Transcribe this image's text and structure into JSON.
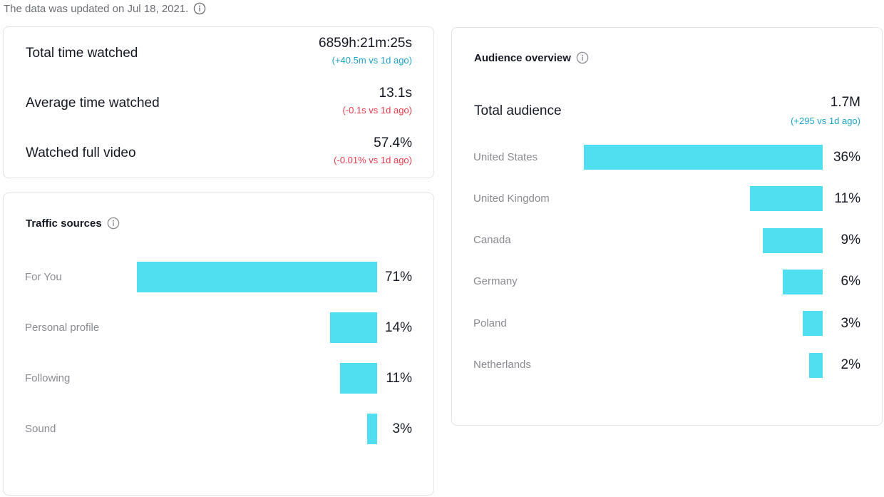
{
  "update_note": {
    "text": "The data was updated on Jul 18, 2021.",
    "icon": "info-icon"
  },
  "stats": [
    {
      "label": "Total time watched",
      "value": "6859h:21m:25s",
      "delta": "(+40.5m vs 1d ago)",
      "trend": "up"
    },
    {
      "label": "Average time watched",
      "value": "13.1s",
      "delta": "(-0.1s vs 1d ago)",
      "trend": "down"
    },
    {
      "label": "Watched full video",
      "value": "57.4%",
      "delta": "(-0.01% vs 1d ago)",
      "trend": "down"
    }
  ],
  "traffic_sources": {
    "title": "Traffic sources",
    "icon": "info-icon",
    "items": [
      {
        "label": "For You",
        "percent": 71,
        "percent_label": "71%"
      },
      {
        "label": "Personal profile",
        "percent": 14,
        "percent_label": "14%"
      },
      {
        "label": "Following",
        "percent": 11,
        "percent_label": "11%"
      },
      {
        "label": "Sound",
        "percent": 3,
        "percent_label": "3%"
      }
    ]
  },
  "audience": {
    "title": "Audience overview",
    "icon": "info-icon",
    "total_label": "Total audience",
    "total_value": "1.7M",
    "total_delta": "(+295 vs 1d ago)",
    "countries": [
      {
        "label": "United States",
        "percent": 36,
        "percent_label": "36%"
      },
      {
        "label": "United Kingdom",
        "percent": 11,
        "percent_label": "11%"
      },
      {
        "label": "Canada",
        "percent": 9,
        "percent_label": "9%"
      },
      {
        "label": "Germany",
        "percent": 6,
        "percent_label": "6%"
      },
      {
        "label": "Poland",
        "percent": 3,
        "percent_label": "3%"
      },
      {
        "label": "Netherlands",
        "percent": 2,
        "percent_label": "2%"
      }
    ]
  },
  "colors": {
    "bar": "#4fdff0",
    "delta_up": "#20a3c5",
    "delta_down": "#ea3a4c",
    "text_primary": "#161823",
    "text_secondary": "#8a8b91"
  }
}
